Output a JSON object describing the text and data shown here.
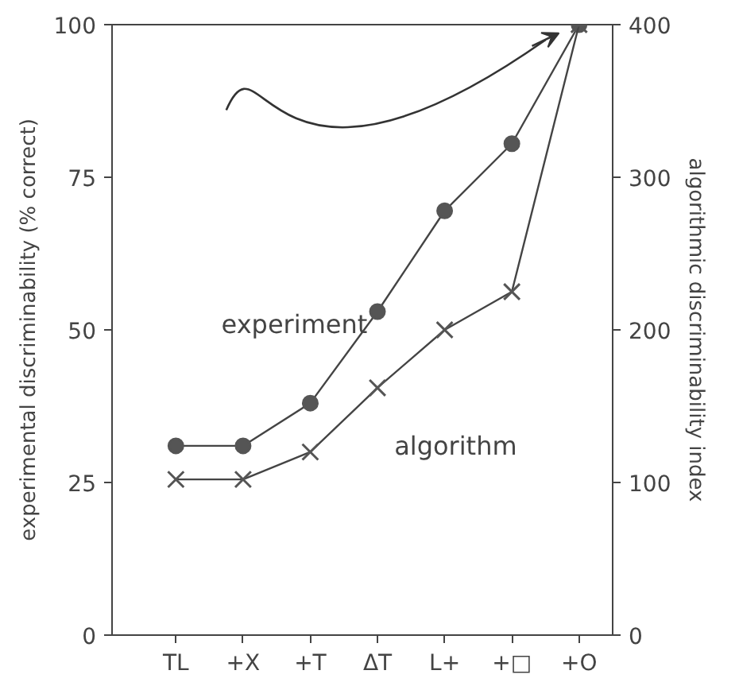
{
  "chart_data": {
    "type": "line",
    "xlabel": null,
    "ylabel": "experimental discriminability (% correct)",
    "y2label": "algorithmic discriminability index",
    "categories": [
      "TL",
      "+X",
      "+T",
      "ΔT",
      "L+",
      "+□",
      "+O"
    ],
    "series": [
      {
        "name": "experiment",
        "color": "#555555",
        "marker": "circle",
        "values": [
          31,
          31,
          38,
          53,
          69.5,
          80.5,
          100
        ]
      },
      {
        "name": "algorithm",
        "color": "#555555",
        "marker": "cross",
        "axis": "y2",
        "values": [
          102,
          102,
          120,
          162,
          200,
          225,
          400
        ]
      }
    ],
    "ylim": [
      0,
      100
    ],
    "yticks": [
      0,
      25,
      50,
      75,
      100
    ],
    "y2lim": [
      0,
      400
    ],
    "y2ticks": [
      0,
      100,
      200,
      300,
      400
    ],
    "grid": false
  }
}
